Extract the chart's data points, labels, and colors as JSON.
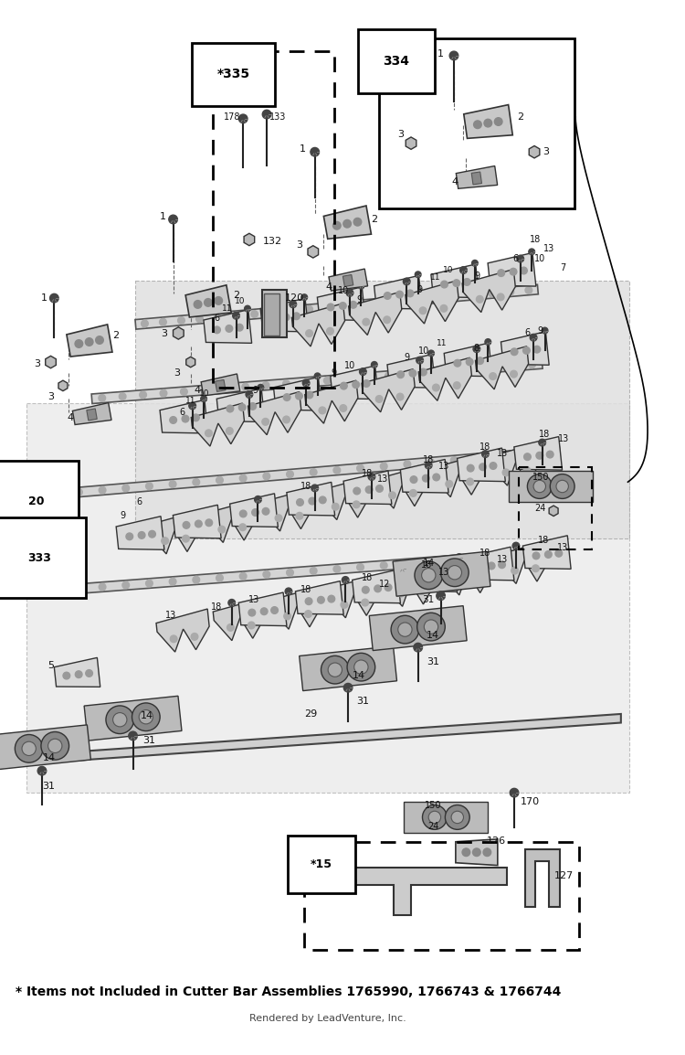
{
  "footnote": "* Items not Included in Cutter Bar Assemblies 1765990, 1766743 & 1766744",
  "credit": "Rendered by LeadVenture, Inc.",
  "bg_color": "#ffffff",
  "text_color": "#000000"
}
